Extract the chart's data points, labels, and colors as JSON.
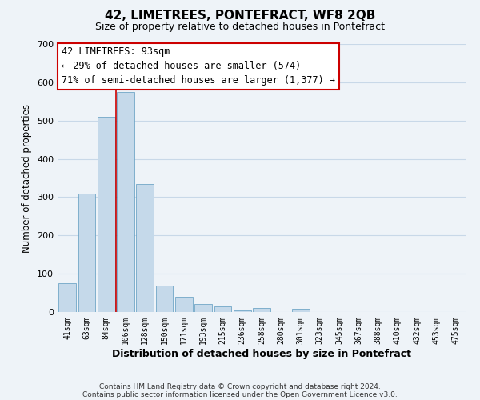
{
  "title": "42, LIMETREES, PONTEFRACT, WF8 2QB",
  "subtitle": "Size of property relative to detached houses in Pontefract",
  "xlabel": "Distribution of detached houses by size in Pontefract",
  "ylabel": "Number of detached properties",
  "bar_labels": [
    "41sqm",
    "63sqm",
    "84sqm",
    "106sqm",
    "128sqm",
    "150sqm",
    "171sqm",
    "193sqm",
    "215sqm",
    "236sqm",
    "258sqm",
    "280sqm",
    "301sqm",
    "323sqm",
    "345sqm",
    "367sqm",
    "388sqm",
    "410sqm",
    "432sqm",
    "453sqm",
    "475sqm"
  ],
  "bar_values": [
    75,
    310,
    510,
    575,
    335,
    70,
    40,
    20,
    15,
    5,
    10,
    0,
    8,
    0,
    0,
    0,
    0,
    0,
    0,
    0,
    0
  ],
  "bar_color": "#c5d9ea",
  "bar_edge_color": "#5b9abf",
  "vline_x": 2.5,
  "vline_color": "#cc0000",
  "ylim": [
    0,
    700
  ],
  "yticks": [
    0,
    100,
    200,
    300,
    400,
    500,
    600,
    700
  ],
  "annotation_title": "42 LIMETREES: 93sqm",
  "annotation_line1": "← 29% of detached houses are smaller (574)",
  "annotation_line2": "71% of semi-detached houses are larger (1,377) →",
  "annotation_box_color": "#ffffff",
  "annotation_box_edge": "#cc0000",
  "footer1": "Contains HM Land Registry data © Crown copyright and database right 2024.",
  "footer2": "Contains public sector information licensed under the Open Government Licence v3.0.",
  "grid_color": "#c8d8e8",
  "background_color": "#eef3f8"
}
